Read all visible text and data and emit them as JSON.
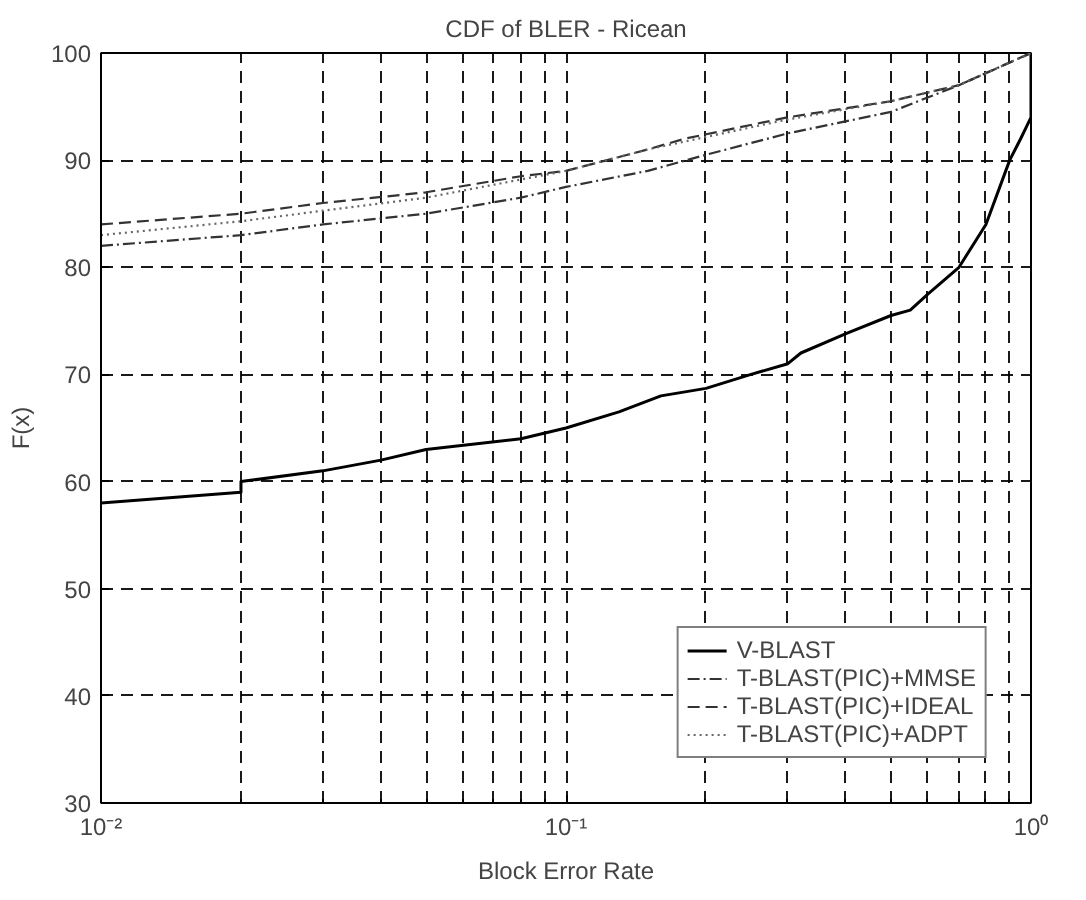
{
  "chart_data": {
    "type": "line",
    "title": "CDF of BLER - Ricean",
    "xlabel": "Block Error Rate",
    "ylabel": "F(x)",
    "log": "x",
    "grid": true,
    "legend": "bottom right",
    "xlim": [
      0.01,
      1
    ],
    "ylim": [
      30,
      100
    ],
    "xticks": [
      {
        "value": 0.01,
        "label": "10⁻²"
      },
      {
        "value": 0.1,
        "label": "10⁻¹"
      },
      {
        "value": 1,
        "label": "10⁰"
      }
    ],
    "yticks": [
      30,
      40,
      50,
      60,
      70,
      80,
      90,
      100
    ],
    "series": [
      {
        "name": "V-BLAST",
        "color": "#000000",
        "line_style": "solid",
        "x": [
          0.01,
          0.02,
          0.02,
          0.03,
          0.04,
          0.05,
          0.08,
          0.1,
          0.13,
          0.16,
          0.2,
          0.25,
          0.3,
          0.32,
          0.4,
          0.5,
          0.55,
          0.6,
          0.7,
          0.8,
          0.9,
          0.95,
          1.0,
          1.0
        ],
        "values": [
          58,
          59,
          60,
          61,
          62,
          63,
          64,
          65,
          66.5,
          68,
          68.7,
          70,
          71,
          72,
          73.8,
          75.5,
          76,
          77.5,
          80,
          84,
          90,
          92,
          94,
          100
        ]
      },
      {
        "name": "T-BLAST(PIC)+MMSE",
        "color": "#333333",
        "line_style": "dashdot",
        "x": [
          0.01,
          0.02,
          0.03,
          0.05,
          0.08,
          0.1,
          0.15,
          0.2,
          0.3,
          0.5,
          0.7,
          1.0
        ],
        "values": [
          82,
          83,
          84,
          85,
          86.5,
          87.5,
          89,
          90.5,
          92.5,
          94.5,
          97,
          100
        ]
      },
      {
        "name": "T-BLAST(PIC)+IDEAL",
        "color": "#333333",
        "line_style": "dashed",
        "x": [
          0.01,
          0.02,
          0.03,
          0.05,
          0.08,
          0.1,
          0.15,
          0.18,
          0.3,
          0.5,
          0.7,
          1.0
        ],
        "values": [
          84,
          85,
          86,
          87,
          88.5,
          89,
          91,
          92,
          94,
          95.5,
          97,
          100
        ]
      },
      {
        "name": "T-BLAST(PIC)+ADPT",
        "color": "#666666",
        "line_style": "dotted",
        "x": [
          0.01,
          0.02,
          0.05,
          0.1,
          0.15,
          0.3,
          0.5,
          0.7,
          1.0
        ],
        "values": [
          83,
          84.3,
          86.5,
          89,
          91,
          93.8,
          95.5,
          97,
          100
        ]
      }
    ]
  }
}
